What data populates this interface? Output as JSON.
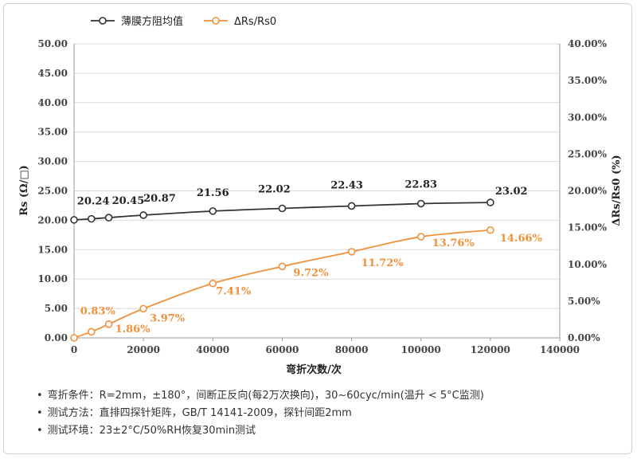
{
  "chart_data": {
    "type": "line",
    "x": [
      0,
      5000,
      10000,
      20000,
      40000,
      60000,
      80000,
      100000,
      120000
    ],
    "xlabel": "弯折次数/次",
    "ylabel_left": "Rs (Ω/□)",
    "ylabel_right": "ΔRs/Rs0 (%)",
    "xlim": [
      0,
      140000
    ],
    "ylim_left": [
      0,
      50
    ],
    "ylim_right": [
      0,
      40
    ],
    "x_ticks": [
      "0",
      "20000",
      "40000",
      "60000",
      "80000",
      "100000",
      "120000",
      "140000"
    ],
    "y_ticks_left": [
      "0.00",
      "5.00",
      "10.00",
      "15.00",
      "20.00",
      "25.00",
      "30.00",
      "35.00",
      "40.00",
      "45.00",
      "50.00"
    ],
    "y_ticks_right": [
      "0.00%",
      "5.00%",
      "10.00%",
      "15.00%",
      "20.00%",
      "25.00%",
      "30.00%",
      "35.00%",
      "40.00%"
    ],
    "grid": "horizontal",
    "legend_position": "top-left",
    "series": [
      {
        "name": "薄膜方阻均值",
        "axis": "left",
        "color": "#333333",
        "values": [
          20.07,
          20.24,
          20.45,
          20.87,
          21.56,
          22.02,
          22.43,
          22.83,
          23.02
        ],
        "labels": [
          "",
          "20.24",
          "20.45",
          "20.87",
          "21.56",
          "22.02",
          "22.43",
          "22.83",
          "23.02"
        ]
      },
      {
        "name": "ΔRs/Rs0",
        "axis": "right",
        "color": "#f0913a",
        "values": [
          0,
          0.83,
          1.86,
          3.97,
          7.41,
          9.72,
          11.72,
          13.76,
          14.66
        ],
        "labels": [
          "",
          "0.83%",
          "1.86%",
          "3.97%",
          "7.41%",
          "9.72%",
          "11.72%",
          "13.76%",
          "14.66%"
        ]
      }
    ]
  },
  "notes": [
    "弯折条件：R=2mm，±180°，间断正反向(每2万次换向)，30~60cyc/min(温升 < 5°C监测)",
    "测试方法：直排四探针矩阵，GB/T 14141-2009，探针间距2mm",
    "测试环境：23±2°C/50%RH恢复30min测试"
  ],
  "bullet": "•"
}
